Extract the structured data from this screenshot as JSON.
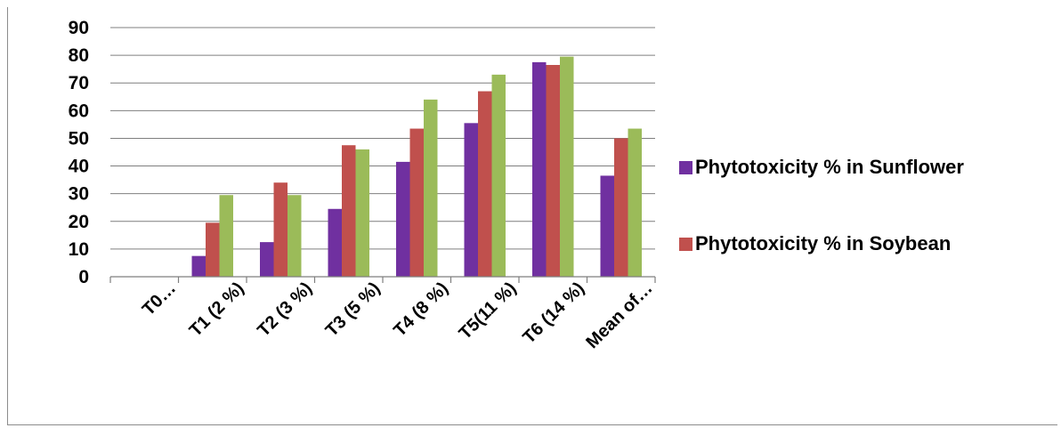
{
  "chart_data": {
    "type": "bar",
    "categories": [
      "T0…",
      "T1 (2 %)",
      "T2 (3 %)",
      "T3 (5 %)",
      "T4 (8 %)",
      "T5(11 %)",
      "T6 (14 %)",
      "Mean of…"
    ],
    "series": [
      {
        "name": "Phytotoxicity % in Sunflower",
        "color": "#7030A0",
        "values": [
          0,
          7.5,
          12.5,
          24.5,
          41.5,
          55.5,
          77.5,
          36.5
        ],
        "in_legend": true
      },
      {
        "name": "Phytotoxicity % in Soybean",
        "color": "#C0504D",
        "values": [
          0,
          19.5,
          34,
          47.5,
          53.5,
          67,
          76.5,
          50
        ],
        "in_legend": true
      },
      {
        "name": "",
        "color": "#9BBB59",
        "values": [
          0,
          29.5,
          29.5,
          46,
          64,
          73,
          79.5,
          53.5
        ],
        "in_legend": false
      }
    ],
    "yticks": [
      "0",
      "10",
      "20",
      "30",
      "40",
      "50",
      "60",
      "70",
      "80",
      "90"
    ],
    "ylim": [
      0,
      90
    ],
    "grid": true,
    "legend_position": "right",
    "title": "",
    "xlabel": "",
    "ylabel": ""
  }
}
